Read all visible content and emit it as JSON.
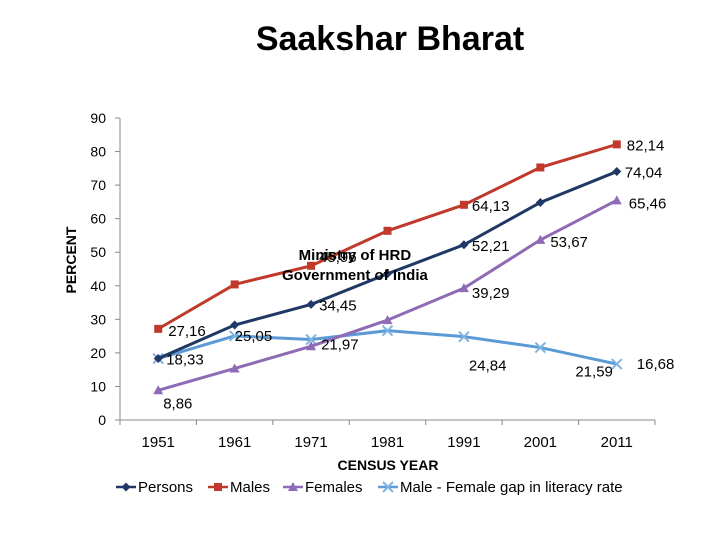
{
  "title": "Saakshar Bharat",
  "watermark": {
    "line1": "Ministry of HRD",
    "line2": "Government of India"
  },
  "chart_data": {
    "type": "line",
    "title": "Saakshar Bharat",
    "xlabel": "CENSUS YEAR",
    "ylabel": "PERCENT",
    "ylim": [
      0,
      90
    ],
    "yticks": [
      "0",
      "10",
      "20",
      "30",
      "40",
      "50",
      "60",
      "70",
      "80",
      "90"
    ],
    "categories": [
      "1951",
      "1961",
      "1971",
      "1981",
      "1991",
      "2001",
      "2011"
    ],
    "series": [
      {
        "name": "Persons",
        "color": "#1f3864",
        "marker": "diamond",
        "values": [
          18.33,
          28.3,
          34.45,
          43.57,
          52.21,
          64.83,
          74.04
        ],
        "labels": [
          "18,33",
          "",
          "34,45",
          "",
          "52,21",
          "",
          "74,04"
        ]
      },
      {
        "name": "Males",
        "color": "#c0392b",
        "marker": "square",
        "values": [
          27.16,
          40.4,
          45.96,
          56.38,
          64.13,
          75.26,
          82.14
        ],
        "labels": [
          "27,16",
          "",
          "45,96",
          "",
          "64,13",
          "",
          "82,14"
        ]
      },
      {
        "name": "Females",
        "color": "#8e6bb5",
        "marker": "triangle",
        "values": [
          8.86,
          15.35,
          21.97,
          29.76,
          39.29,
          53.67,
          65.46
        ],
        "labels": [
          "8,86",
          "",
          "21,97",
          "",
          "39,29",
          "53,67",
          "65,46"
        ]
      },
      {
        "name": "Male - Female gap in literacy rate",
        "color": "#5b9bd5",
        "marker": "x",
        "values": [
          18.3,
          25.05,
          23.98,
          26.62,
          24.84,
          21.59,
          16.68
        ],
        "labels": [
          "",
          "25,05",
          "",
          "",
          "24,84",
          "21,59",
          "16,68"
        ]
      }
    ],
    "grid": false,
    "legend": "bottom"
  }
}
